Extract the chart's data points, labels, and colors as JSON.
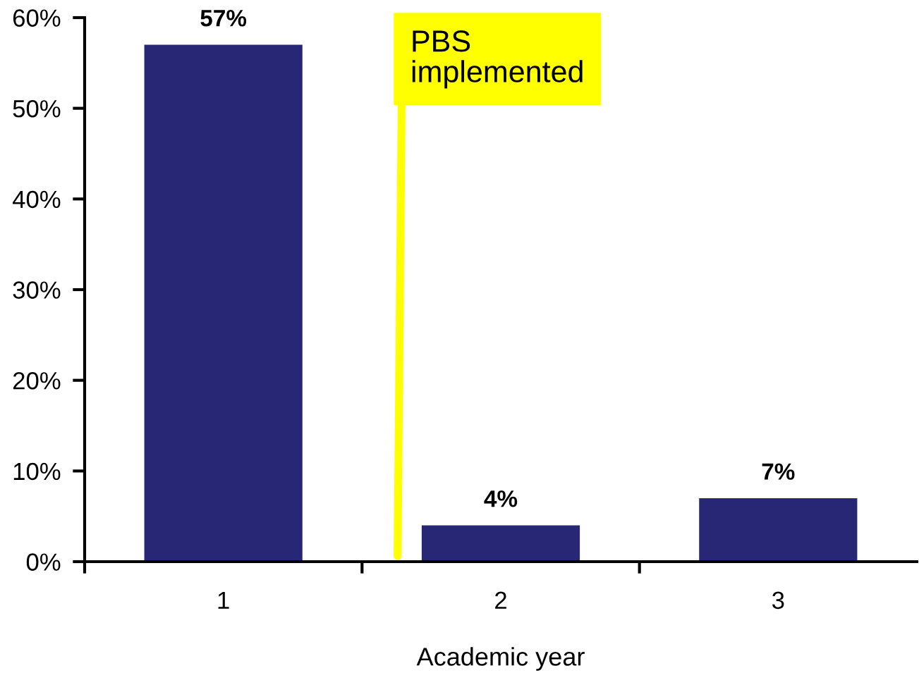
{
  "chart_data": {
    "type": "bar",
    "xlabel": "Academic year",
    "categories": [
      "1",
      "2",
      "3"
    ],
    "values": [
      57,
      4,
      7
    ],
    "color": "#272775",
    "value_labels": [
      "57%",
      "4%",
      "7%"
    ],
    "ylim": [
      0,
      60
    ],
    "yticks": [
      {
        "value": 0,
        "label": "0%"
      },
      {
        "value": 10,
        "label": "10%"
      },
      {
        "value": 20,
        "label": "20%"
      },
      {
        "value": 30,
        "label": "30%"
      },
      {
        "value": 40,
        "label": "40%"
      },
      {
        "value": 50,
        "label": "50%"
      },
      {
        "value": 60,
        "label": "60%"
      }
    ],
    "annotations": [
      "PBS\nimplemented"
    ]
  }
}
